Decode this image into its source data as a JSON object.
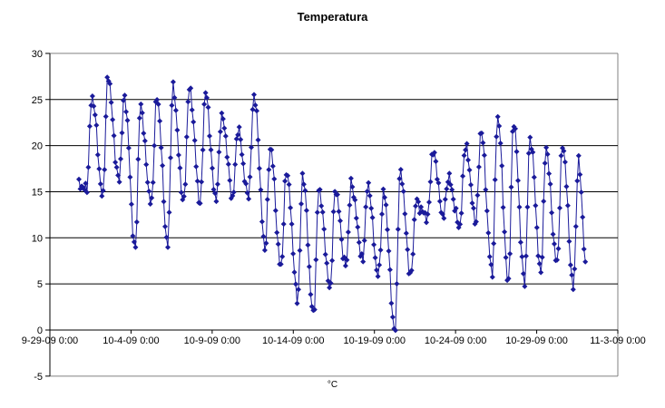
{
  "chart_data": {
    "type": "scatter",
    "title": "Temperatura",
    "xlabel": "°C",
    "ylabel": "",
    "legend": "none",
    "grid": "horizontal-only",
    "background_color": "#FFFFFF",
    "gridline_color": "#000000",
    "plot_border_color": "#808080",
    "ylim": [
      -5,
      30
    ],
    "y_ticks": [
      30,
      25,
      20,
      15,
      10,
      5,
      0,
      -5
    ],
    "x_axis_position_value": 0,
    "x_range_days": [
      0,
      35
    ],
    "x_tick_interval_days": 5,
    "x_tick_labels": [
      "9-29-09 0:00",
      "10-4-09 0:00",
      "10-9-09 0:00",
      "10-14-09 0:00",
      "10-19-09 0:00",
      "10-24-09 0:00",
      "10-29-09 0:00",
      "11-3-09 0:00"
    ],
    "series": [
      {
        "name": "Temperatura",
        "color": "#1A1A9A",
        "marker": "diamond",
        "line_width": 1,
        "start_point": {
          "day_offset": 1.79,
          "value": 16.0
        },
        "end_point": {
          "day_offset": 33.08,
          "value": 6.5
        },
        "daily_min_max": [
          {
            "date": "10-1-09",
            "day_offset": 2,
            "min": 15.0,
            "max": 25.4
          },
          {
            "date": "10-2-09",
            "day_offset": 3,
            "min": 14.8,
            "max": 27.3
          },
          {
            "date": "10-3-09",
            "day_offset": 4,
            "min": 16.0,
            "max": 25.5
          },
          {
            "date": "10-4-09",
            "day_offset": 5,
            "min": 9.0,
            "max": 24.0
          },
          {
            "date": "10-5-09",
            "day_offset": 6,
            "min": 13.5,
            "max": 25.5
          },
          {
            "date": "10-6-09",
            "day_offset": 7,
            "min": 9.5,
            "max": 26.0
          },
          {
            "date": "10-7-09",
            "day_offset": 8,
            "min": 13.7,
            "max": 26.5
          },
          {
            "date": "10-8-09",
            "day_offset": 9,
            "min": 14.0,
            "max": 25.5
          },
          {
            "date": "10-9-09",
            "day_offset": 10,
            "min": 14.0,
            "max": 23.5
          },
          {
            "date": "10-10-09",
            "day_offset": 11,
            "min": 14.5,
            "max": 21.5
          },
          {
            "date": "10-11-09",
            "day_offset": 12,
            "min": 14.5,
            "max": 25.7
          },
          {
            "date": "10-12-09",
            "day_offset": 13,
            "min": 9.0,
            "max": 19.5
          },
          {
            "date": "10-13-09",
            "day_offset": 14,
            "min": 6.8,
            "max": 17.5
          },
          {
            "date": "10-14-09",
            "day_offset": 15,
            "min": 3.5,
            "max": 16.5
          },
          {
            "date": "10-15-09",
            "day_offset": 16,
            "min": 1.6,
            "max": 15.5
          },
          {
            "date": "10-16-09",
            "day_offset": 17,
            "min": 4.5,
            "max": 15.0
          },
          {
            "date": "10-17-09",
            "day_offset": 18,
            "min": 7.0,
            "max": 16.0
          },
          {
            "date": "10-18-09",
            "day_offset": 19,
            "min": 7.5,
            "max": 15.5
          },
          {
            "date": "10-19-09",
            "day_offset": 20,
            "min": 6.0,
            "max": 15.0
          },
          {
            "date": "10-20-09",
            "day_offset": 21,
            "min": -0.3,
            "max": 17.0
          },
          {
            "date": "10-21-09",
            "day_offset": 22,
            "min": 6.0,
            "max": 14.0
          },
          {
            "date": "10-22-09",
            "day_offset": 23,
            "min": 12.0,
            "max": 19.3
          },
          {
            "date": "10-23-09",
            "day_offset": 24,
            "min": 12.5,
            "max": 16.5
          },
          {
            "date": "10-24-09",
            "day_offset": 25,
            "min": 11.0,
            "max": 20.0
          },
          {
            "date": "10-25-09",
            "day_offset": 26,
            "min": 12.0,
            "max": 21.5
          },
          {
            "date": "10-26-09",
            "day_offset": 27,
            "min": 6.0,
            "max": 23.2
          },
          {
            "date": "10-27-09",
            "day_offset": 28,
            "min": 5.5,
            "max": 22.5
          },
          {
            "date": "10-28-09",
            "day_offset": 29,
            "min": 5.0,
            "max": 21.0
          },
          {
            "date": "10-29-09",
            "day_offset": 30,
            "min": 6.5,
            "max": 19.5
          },
          {
            "date": "10-30-09",
            "day_offset": 31,
            "min": 7.0,
            "max": 20.3
          },
          {
            "date": "10-31-09",
            "day_offset": 32,
            "min": 5.0,
            "max": 18.0
          }
        ]
      }
    ]
  }
}
